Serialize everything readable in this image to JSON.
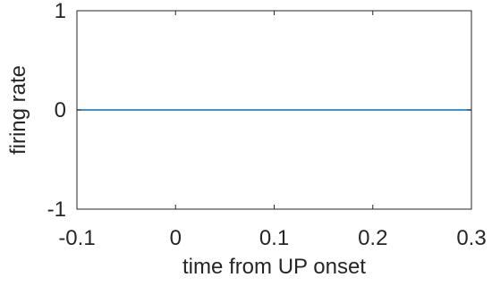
{
  "chart_data": {
    "type": "line",
    "title": "",
    "xlabel": "time from UP onset",
    "ylabel": "firing rate",
    "xlim": [
      -0.1,
      0.3
    ],
    "ylim": [
      -1,
      1
    ],
    "xticks": [
      -0.1,
      0,
      0.1,
      0.2,
      0.3
    ],
    "xtick_labels": [
      "-0.1",
      "0",
      "0.1",
      "0.2",
      "0.3"
    ],
    "yticks": [
      -1,
      0,
      1
    ],
    "ytick_labels": [
      "-1",
      "0",
      "1"
    ],
    "grid": false,
    "series": [
      {
        "x": [
          -0.1,
          0.3
        ],
        "y": [
          0,
          0
        ],
        "color": "#0072BD"
      }
    ]
  }
}
